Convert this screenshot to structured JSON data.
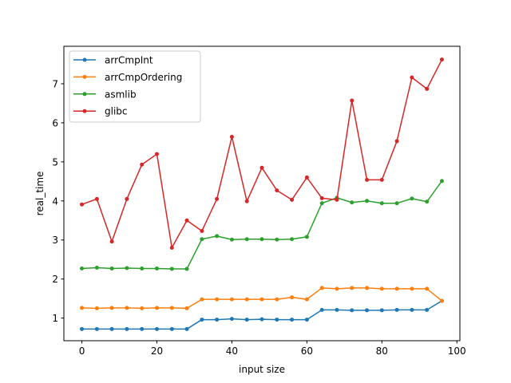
{
  "chart_data": {
    "type": "line",
    "title": "",
    "xlabel": "input size",
    "ylabel": "real_time",
    "xlim": [
      -4.8,
      100.8
    ],
    "ylim": [
      0.42,
      7.96
    ],
    "xticks": [
      0,
      20,
      40,
      60,
      80,
      100
    ],
    "yticks": [
      1,
      2,
      3,
      4,
      5,
      6,
      7
    ],
    "grid": false,
    "legend_position": "upper-left",
    "x": [
      0,
      4,
      8,
      12,
      16,
      20,
      24,
      28,
      32,
      36,
      40,
      44,
      48,
      52,
      56,
      60,
      64,
      68,
      72,
      76,
      80,
      84,
      88,
      92,
      96
    ],
    "series": [
      {
        "name": "arrCmpInt",
        "color": "#1f77b4",
        "values": [
          0.72,
          0.72,
          0.72,
          0.72,
          0.72,
          0.72,
          0.72,
          0.72,
          0.96,
          0.96,
          0.98,
          0.96,
          0.97,
          0.96,
          0.96,
          0.96,
          1.21,
          1.21,
          1.2,
          1.2,
          1.2,
          1.21,
          1.21,
          1.21,
          1.44
        ]
      },
      {
        "name": "arrCmpOrdering",
        "color": "#ff7f0e",
        "values": [
          1.26,
          1.25,
          1.26,
          1.26,
          1.25,
          1.26,
          1.26,
          1.25,
          1.48,
          1.48,
          1.48,
          1.48,
          1.48,
          1.48,
          1.53,
          1.48,
          1.77,
          1.75,
          1.77,
          1.77,
          1.75,
          1.75,
          1.75,
          1.75,
          1.44
        ]
      },
      {
        "name": "asmlib",
        "color": "#2ca02c",
        "values": [
          2.27,
          2.29,
          2.27,
          2.28,
          2.27,
          2.27,
          2.26,
          2.26,
          3.02,
          3.1,
          3.01,
          3.02,
          3.02,
          3.01,
          3.02,
          3.08,
          3.94,
          4.08,
          3.96,
          4.0,
          3.94,
          3.94,
          4.06,
          3.98,
          4.51
        ]
      },
      {
        "name": "glibc",
        "color": "#d62728",
        "values": [
          3.91,
          4.05,
          2.96,
          4.05,
          4.93,
          5.2,
          2.8,
          3.5,
          3.23,
          4.05,
          5.64,
          3.99,
          4.85,
          4.27,
          4.03,
          4.6,
          4.07,
          4.03,
          6.57,
          4.54,
          4.54,
          5.53,
          7.16,
          6.87,
          7.62
        ]
      }
    ]
  }
}
